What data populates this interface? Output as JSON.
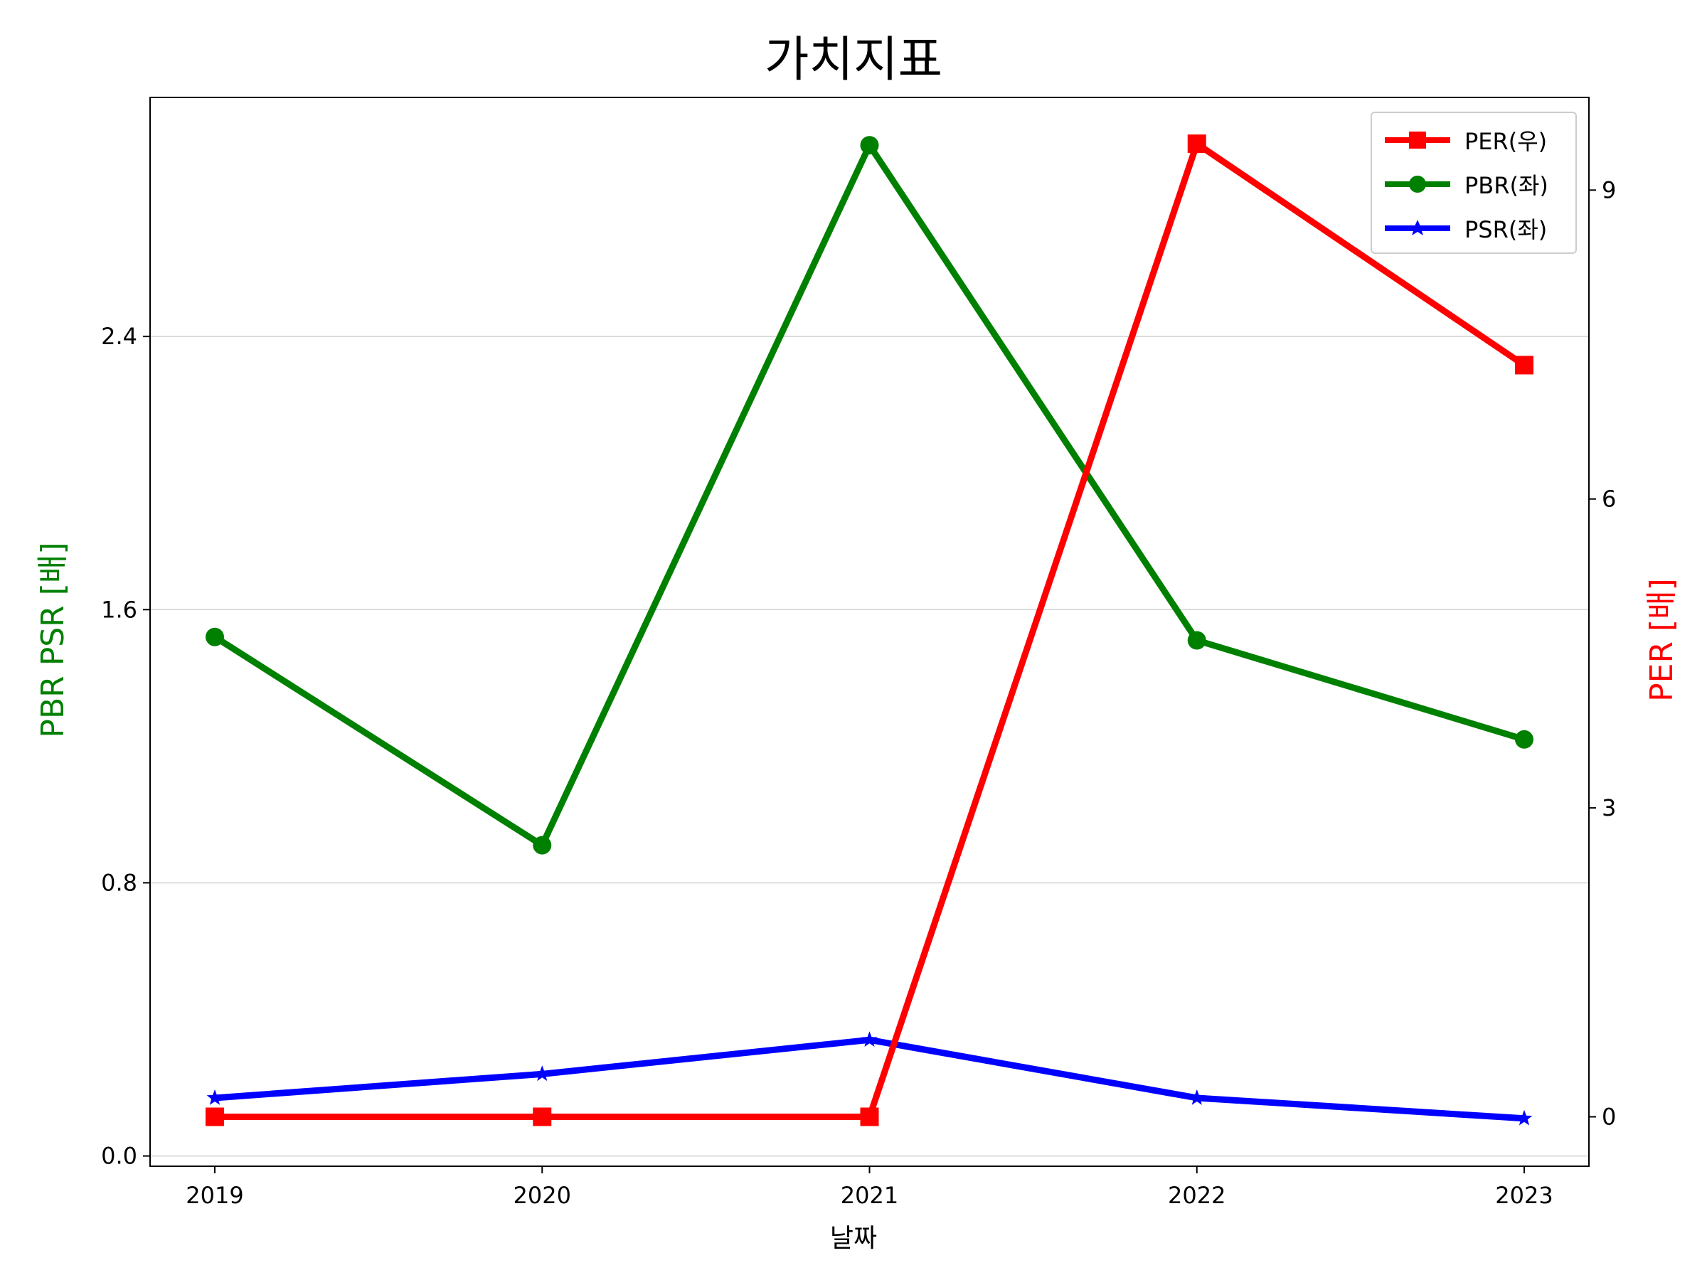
{
  "chart_data": {
    "type": "line",
    "title": "가치지표",
    "xlabel": "날짜",
    "ylabel_left": "PBR PSR [배]",
    "ylabel_right": "PER [배]",
    "categories": [
      "2019",
      "2020",
      "2021",
      "2022",
      "2023"
    ],
    "ylim_left": [
      -0.03,
      3.1
    ],
    "ylim_right": [
      -0.48,
      9.9
    ],
    "yticks_left": [
      "0.0",
      "0.8",
      "1.6",
      "2.4"
    ],
    "yticks_right": [
      "0",
      "3",
      "6",
      "9"
    ],
    "grid": "horizontal (left axis)",
    "legend_position": "top-right",
    "series": [
      {
        "name": "PER(우)",
        "axis": "right",
        "color": "#ff0000",
        "marker": "square",
        "values": [
          0,
          0,
          0,
          9.45,
          7.3
        ]
      },
      {
        "name": "PBR(좌)",
        "axis": "left",
        "color": "#008000",
        "marker": "circle",
        "values": [
          1.52,
          0.91,
          2.96,
          1.51,
          1.22
        ]
      },
      {
        "name": "PSR(좌)",
        "axis": "left",
        "color": "#0000ff",
        "marker": "star",
        "values": [
          0.17,
          0.24,
          0.34,
          0.17,
          0.11
        ]
      }
    ]
  }
}
